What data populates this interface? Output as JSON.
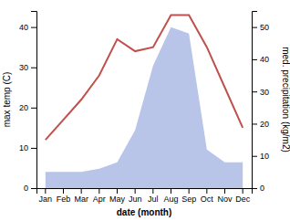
{
  "chart_data": {
    "type": "line",
    "xlabel": "date (month)",
    "ylabel": "max temp (C)",
    "y2label": "med. precipitation (kg/m2)",
    "categories": [
      "Jan",
      "Feb",
      "Mar",
      "Apr",
      "May",
      "Jun",
      "Jul",
      "Aug",
      "Sep",
      "Oct",
      "Nov",
      "Dec"
    ],
    "ylim": [
      0,
      44
    ],
    "yticks": [
      0,
      10,
      20,
      30,
      40
    ],
    "y2lim": [
      0,
      55
    ],
    "y2ticks": [
      0,
      10,
      20,
      30,
      40,
      50
    ],
    "grid": false,
    "series": [
      {
        "type": "area",
        "axis": "y2",
        "color": "#b8c4e8",
        "values": [
          5,
          5,
          5,
          6,
          8,
          18,
          38,
          50,
          48,
          12,
          8,
          8
        ]
      },
      {
        "type": "line",
        "color": "#c0504d",
        "values": [
          12,
          17,
          22,
          28,
          37,
          34,
          35,
          43,
          43,
          35,
          25,
          15
        ]
      }
    ]
  }
}
